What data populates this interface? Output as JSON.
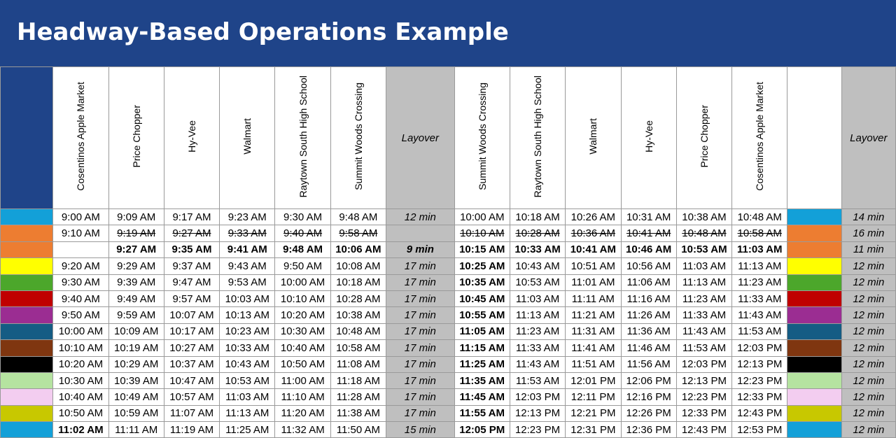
{
  "title": "Headway-Based Operations Example",
  "headers": {
    "outbound": [
      "Cosentinos Apple Market",
      "Price Chopper",
      "Hy-Vee",
      "Walmart",
      "Raytown South High School",
      "Summit Woods Crossing"
    ],
    "layover1": "Layover",
    "inbound": [
      "Summit Woods Crossing",
      "Raytown South High School",
      "Walmart",
      "Hy-Vee",
      "Price Chopper",
      "Cosentinos Apple Market"
    ],
    "layover2": "Layover"
  },
  "rows": [
    {
      "color": "#13a0d8",
      "out": [
        "9:00 AM",
        "9:09 AM",
        "9:17 AM",
        "9:23 AM",
        "9:30 AM",
        "9:48 AM"
      ],
      "lay1": "12 min",
      "in": [
        "10:00 AM",
        "10:18 AM",
        "10:26 AM",
        "10:31 AM",
        "10:38 AM",
        "10:48 AM"
      ],
      "lay2": "14 min",
      "style": "normal",
      "first_style": "normal",
      "arr_style": "normal"
    },
    {
      "color": "#ed7d31",
      "out": [
        "9:10 AM",
        "9:19 AM",
        "9:27 AM",
        "9:33 AM",
        "9:40 AM",
        "9:58 AM"
      ],
      "lay1": "",
      "in": [
        "10:10 AM",
        "10:28 AM",
        "10:36 AM",
        "10:41 AM",
        "10:48 AM",
        "10:58 AM"
      ],
      "lay2": "16 min",
      "style": "strike",
      "first_style": "normal",
      "arr_style": "strike"
    },
    {
      "color": "#ed7d31",
      "out": [
        "",
        "9:27 AM",
        "9:35 AM",
        "9:41 AM",
        "9:48 AM",
        "10:06 AM"
      ],
      "lay1": "9 min",
      "in": [
        "10:15 AM",
        "10:33 AM",
        "10:41 AM",
        "10:46 AM",
        "10:53 AM",
        "11:03 AM"
      ],
      "lay2": "11 min",
      "style": "blue",
      "first_style": "blue",
      "arr_style": "blue"
    },
    {
      "color": "#ffff00",
      "out": [
        "9:20 AM",
        "9:29 AM",
        "9:37 AM",
        "9:43 AM",
        "9:50 AM",
        "10:08 AM"
      ],
      "lay1": "17 min",
      "in": [
        "10:25 AM",
        "10:43 AM",
        "10:51 AM",
        "10:56 AM",
        "11:03 AM",
        "11:13 AM"
      ],
      "lay2": "12 min",
      "style": "normal",
      "first_style": "normal",
      "arr_style": "green"
    },
    {
      "color": "#4ca72b",
      "out": [
        "9:30 AM",
        "9:39 AM",
        "9:47 AM",
        "9:53 AM",
        "10:00 AM",
        "10:18 AM"
      ],
      "lay1": "17 min",
      "in": [
        "10:35 AM",
        "10:53 AM",
        "11:01 AM",
        "11:06 AM",
        "11:13 AM",
        "11:23 AM"
      ],
      "lay2": "12 min",
      "style": "normal",
      "first_style": "normal",
      "arr_style": "green"
    },
    {
      "color": "#c00000",
      "out": [
        "9:40 AM",
        "9:49 AM",
        "9:57 AM",
        "10:03 AM",
        "10:10 AM",
        "10:28 AM"
      ],
      "lay1": "17 min",
      "in": [
        "10:45 AM",
        "11:03 AM",
        "11:11 AM",
        "11:16 AM",
        "11:23 AM",
        "11:33 AM"
      ],
      "lay2": "12 min",
      "style": "normal",
      "first_style": "normal",
      "arr_style": "green"
    },
    {
      "color": "#9b2d92",
      "out": [
        "9:50 AM",
        "9:59 AM",
        "10:07 AM",
        "10:13 AM",
        "10:20 AM",
        "10:38 AM"
      ],
      "lay1": "17 min",
      "in": [
        "10:55 AM",
        "11:13 AM",
        "11:21 AM",
        "11:26 AM",
        "11:33 AM",
        "11:43 AM"
      ],
      "lay2": "12 min",
      "style": "normal",
      "first_style": "normal",
      "arr_style": "green"
    },
    {
      "color": "#155c84",
      "out": [
        "10:00 AM",
        "10:09 AM",
        "10:17 AM",
        "10:23 AM",
        "10:30 AM",
        "10:48 AM"
      ],
      "lay1": "17 min",
      "in": [
        "11:05 AM",
        "11:23 AM",
        "11:31 AM",
        "11:36 AM",
        "11:43 AM",
        "11:53 AM"
      ],
      "lay2": "12 min",
      "style": "normal",
      "first_style": "normal",
      "arr_style": "green"
    },
    {
      "color": "#7f3610",
      "out": [
        "10:10 AM",
        "10:19 AM",
        "10:27 AM",
        "10:33 AM",
        "10:40 AM",
        "10:58 AM"
      ],
      "lay1": "17 min",
      "in": [
        "11:15 AM",
        "11:33 AM",
        "11:41 AM",
        "11:46 AM",
        "11:53 AM",
        "12:03 PM"
      ],
      "lay2": "12 min",
      "style": "normal",
      "first_style": "normal",
      "arr_style": "green"
    },
    {
      "color": "#000000",
      "out": [
        "10:20 AM",
        "10:29 AM",
        "10:37 AM",
        "10:43 AM",
        "10:50 AM",
        "11:08 AM"
      ],
      "lay1": "17 min",
      "in": [
        "11:25 AM",
        "11:43 AM",
        "11:51 AM",
        "11:56 AM",
        "12:03 PM",
        "12:13 PM"
      ],
      "lay2": "12 min",
      "style": "normal",
      "first_style": "normal",
      "arr_style": "green"
    },
    {
      "color": "#b5e3a0",
      "out": [
        "10:30 AM",
        "10:39 AM",
        "10:47 AM",
        "10:53 AM",
        "11:00 AM",
        "11:18 AM"
      ],
      "lay1": "17 min",
      "in": [
        "11:35 AM",
        "11:53 AM",
        "12:01 PM",
        "12:06 PM",
        "12:13 PM",
        "12:23 PM"
      ],
      "lay2": "12 min",
      "style": "normal",
      "first_style": "normal",
      "arr_style": "green"
    },
    {
      "color": "#f3cdf0",
      "out": [
        "10:40 AM",
        "10:49 AM",
        "10:57 AM",
        "11:03 AM",
        "11:10 AM",
        "11:28 AM"
      ],
      "lay1": "17 min",
      "in": [
        "11:45 AM",
        "12:03 PM",
        "12:11 PM",
        "12:16 PM",
        "12:23 PM",
        "12:33 PM"
      ],
      "lay2": "12 min",
      "style": "normal",
      "first_style": "normal",
      "arr_style": "green"
    },
    {
      "color": "#c8c800",
      "out": [
        "10:50 AM",
        "10:59 AM",
        "11:07 AM",
        "11:13 AM",
        "11:20 AM",
        "11:38 AM"
      ],
      "lay1": "17 min",
      "in": [
        "11:55 AM",
        "12:13 PM",
        "12:21 PM",
        "12:26 PM",
        "12:33 PM",
        "12:43 PM"
      ],
      "lay2": "12 min",
      "style": "normal",
      "first_style": "normal",
      "arr_style": "green"
    },
    {
      "color": "#13a0d8",
      "out": [
        "11:02 AM",
        "11:11 AM",
        "11:19 AM",
        "11:25 AM",
        "11:32 AM",
        "11:50 AM"
      ],
      "lay1": "15 min",
      "in": [
        "12:05 PM",
        "12:23 PM",
        "12:31 PM",
        "12:36 PM",
        "12:43 PM",
        "12:53 PM"
      ],
      "lay2": "12 min",
      "style": "normal",
      "first_style": "green",
      "arr_style": "green"
    }
  ]
}
